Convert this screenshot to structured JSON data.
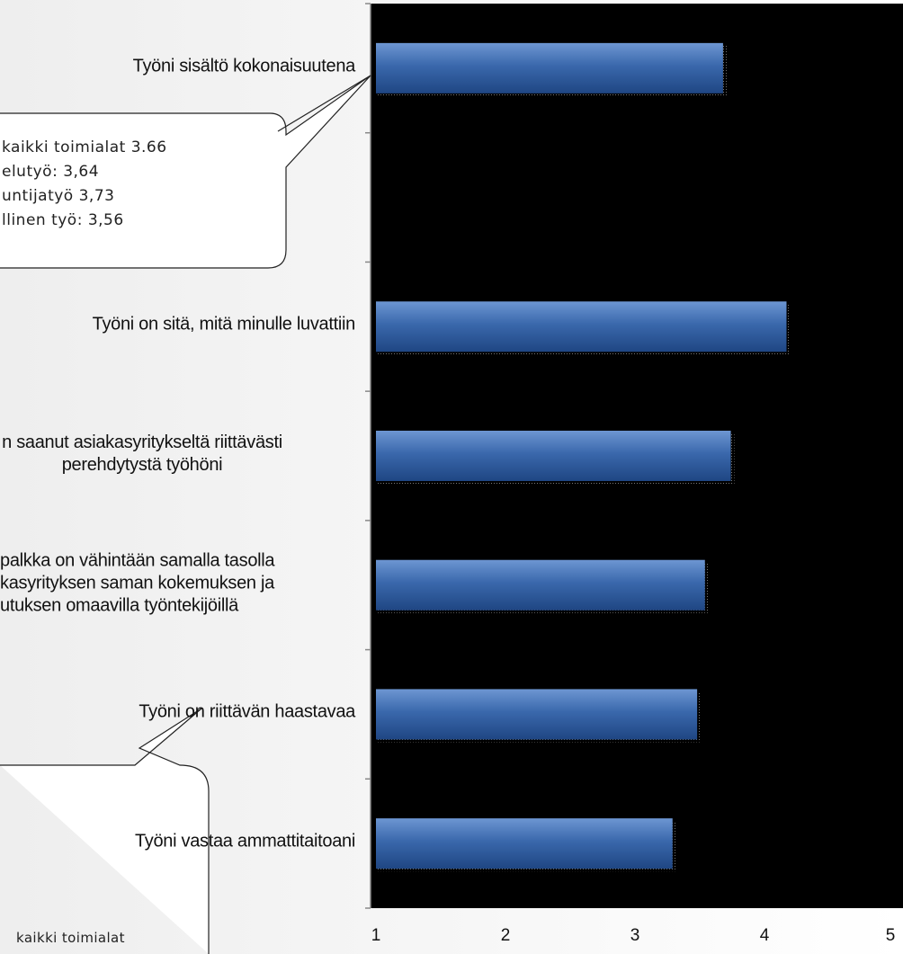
{
  "chart_data": {
    "type": "bar",
    "orientation": "horizontal",
    "categories": [
      "Työni sisältö kokonaisuutena",
      "",
      "Työni on sitä, mitä minulle luvattiin",
      "n saanut asiakasyritykseltä riittävästi perehdytystä työhöni",
      "palkka on vähintään samalla tasolla kasyrityksen saman kokemuksen ja utuksen omaavilla työntekijöillä",
      "Työni on riittävän haastavaa",
      "Työni vastaa ammattitaitoani"
    ],
    "category_lines": [
      [
        "Työni sisältö kokonaisuutena"
      ],
      [],
      [
        "Työni on sitä, mitä minulle luvattiin"
      ],
      [
        "n saanut asiakasyritykseltä riittävästi",
        "perehdytystä työhöni"
      ],
      [
        "palkka on vähintään samalla tasolla",
        "kasyrityksen saman kokemuksen ja",
        "utuksen omaavilla työntekijöillä"
      ],
      [
        "Työni on riittävän haastavaa"
      ],
      [
        "Työni vastaa ammattitaitoani"
      ]
    ],
    "values": [
      3.68,
      null,
      4.17,
      3.74,
      3.54,
      3.48,
      3.29
    ],
    "xlim": [
      1,
      5
    ],
    "xticks": [
      "1",
      "2",
      "3",
      "4",
      "5"
    ],
    "plot_background": "#000000",
    "bar_color": "#2e5a9c",
    "bar_highlight": "#6d96d2",
    "grid": false,
    "callouts": [
      {
        "lines": [
          "kaikki toimialat 3.66",
          "elutyö: 3,64",
          "untijatyö 3,73",
          "llinen työ: 3,56"
        ]
      },
      {
        "lines": [
          "kaikki toimialat"
        ]
      }
    ]
  }
}
